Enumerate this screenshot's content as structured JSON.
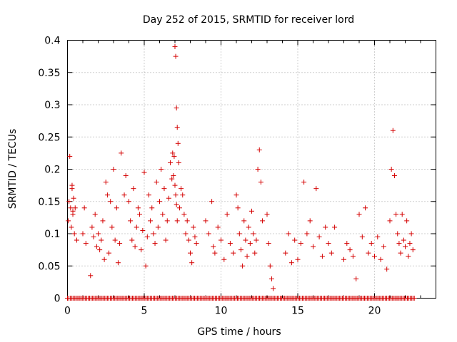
{
  "chart_data": {
    "type": "scatter",
    "title": "Day 252 of 2015, SRMTID for receiver lord",
    "xlabel": "GPS time / hours",
    "ylabel": "SRMTID / TECUs",
    "xlim": [
      0,
      24
    ],
    "ylim": [
      0,
      0.4
    ],
    "grid": true,
    "marker": "+",
    "color": "#d40000",
    "xticks": [
      "0",
      "5",
      "10",
      "15",
      "20"
    ],
    "yticks": [
      "0",
      "0.05",
      "0.1",
      "0.15",
      "0.2",
      "0.25",
      "0.3",
      "0.35",
      "0.4"
    ],
    "series": [
      {
        "name": "SRMTID",
        "x": [
          0.05,
          0.1,
          0.15,
          0.2,
          0.25,
          0.3,
          0.35,
          0.4,
          0.45,
          0.3,
          0.35,
          0.5,
          0.6,
          1.0,
          1.1,
          1.2,
          1.5,
          1.6,
          1.7,
          1.8,
          1.9,
          2.0,
          2.1,
          2.2,
          2.3,
          2.4,
          2.5,
          2.6,
          2.7,
          2.8,
          2.9,
          3.0,
          3.1,
          3.2,
          3.3,
          3.4,
          3.5,
          3.7,
          3.8,
          4.0,
          4.1,
          4.2,
          4.3,
          4.4,
          4.5,
          4.6,
          4.7,
          4.8,
          4.9,
          5.0,
          5.1,
          5.2,
          5.3,
          5.4,
          5.5,
          5.6,
          5.7,
          5.8,
          5.9,
          6.0,
          6.1,
          6.2,
          6.3,
          6.4,
          6.5,
          6.6,
          6.7,
          6.8,
          6.85,
          6.9,
          6.95,
          7.0,
          7.05,
          7.1,
          7.15,
          7.2,
          7.25,
          7.0,
          7.1,
          7.05,
          7.15,
          7.3,
          7.4,
          7.5,
          7.6,
          7.7,
          7.8,
          7.9,
          8.0,
          8.1,
          8.2,
          8.3,
          8.4,
          9.0,
          9.2,
          9.4,
          9.5,
          9.6,
          9.8,
          10.0,
          10.2,
          10.4,
          10.6,
          10.8,
          11.0,
          11.1,
          11.2,
          11.3,
          11.4,
          11.5,
          11.6,
          11.7,
          11.8,
          11.9,
          12.0,
          12.1,
          12.2,
          12.3,
          12.4,
          12.5,
          12.6,
          12.7,
          13.0,
          13.1,
          13.2,
          13.3,
          13.4,
          14.2,
          14.4,
          14.6,
          14.8,
          15.0,
          15.2,
          15.4,
          15.6,
          15.8,
          16.0,
          16.2,
          16.4,
          16.6,
          16.8,
          17.0,
          17.2,
          17.4,
          18.0,
          18.2,
          18.4,
          18.6,
          18.8,
          19.0,
          19.2,
          19.4,
          19.6,
          19.8,
          20.0,
          20.2,
          20.4,
          20.6,
          20.8,
          21.0,
          21.1,
          21.2,
          21.3,
          21.4,
          21.5,
          21.6,
          21.7,
          21.8,
          21.9,
          22.0,
          22.1,
          22.2,
          22.3,
          22.4,
          22.5
        ],
        "y": [
          0.12,
          0.15,
          0.22,
          0.14,
          0.11,
          0.17,
          0.13,
          0.155,
          0.1,
          0.175,
          0.135,
          0.14,
          0.09,
          0.1,
          0.14,
          0.085,
          0.035,
          0.11,
          0.095,
          0.13,
          0.08,
          0.1,
          0.075,
          0.09,
          0.12,
          0.06,
          0.18,
          0.16,
          0.07,
          0.15,
          0.11,
          0.2,
          0.09,
          0.14,
          0.055,
          0.085,
          0.225,
          0.16,
          0.19,
          0.15,
          0.12,
          0.09,
          0.17,
          0.08,
          0.11,
          0.14,
          0.13,
          0.075,
          0.105,
          0.195,
          0.05,
          0.095,
          0.16,
          0.12,
          0.14,
          0.1,
          0.085,
          0.18,
          0.11,
          0.15,
          0.2,
          0.13,
          0.17,
          0.09,
          0.12,
          0.155,
          0.21,
          0.185,
          0.225,
          0.19,
          0.22,
          0.39,
          0.375,
          0.295,
          0.265,
          0.24,
          0.21,
          0.175,
          0.145,
          0.16,
          0.12,
          0.14,
          0.17,
          0.16,
          0.13,
          0.1,
          0.12,
          0.09,
          0.07,
          0.055,
          0.11,
          0.095,
          0.085,
          0.12,
          0.1,
          0.15,
          0.08,
          0.07,
          0.11,
          0.09,
          0.06,
          0.13,
          0.085,
          0.07,
          0.16,
          0.14,
          0.1,
          0.075,
          0.05,
          0.12,
          0.09,
          0.065,
          0.11,
          0.085,
          0.135,
          0.1,
          0.07,
          0.09,
          0.2,
          0.23,
          0.18,
          0.12,
          0.13,
          0.085,
          0.05,
          0.03,
          0.015,
          0.07,
          0.1,
          0.055,
          0.09,
          0.06,
          0.085,
          0.18,
          0.1,
          0.12,
          0.08,
          0.17,
          0.095,
          0.065,
          0.11,
          0.085,
          0.07,
          0.11,
          0.06,
          0.085,
          0.075,
          0.065,
          0.03,
          0.13,
          0.095,
          0.14,
          0.07,
          0.085,
          0.065,
          0.095,
          0.06,
          0.08,
          0.045,
          0.12,
          0.2,
          0.26,
          0.19,
          0.13,
          0.1,
          0.085,
          0.07,
          0.13,
          0.09,
          0.08,
          0.12,
          0.065,
          0.085,
          0.1,
          0.075
        ],
        "baseline_x_start": 0,
        "baseline_x_end": 22.6,
        "baseline_y": 0
      }
    ]
  }
}
